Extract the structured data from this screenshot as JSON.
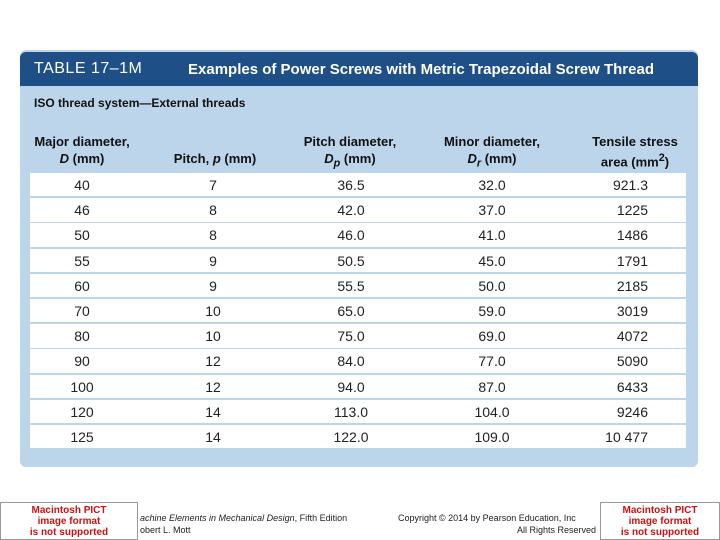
{
  "header": {
    "table_number": "TABLE 17–1M",
    "title": "Examples of Power Screws with Metric Trapezoidal Screw Thread"
  },
  "subtitle": "ISO thread system—External threads",
  "columns": [
    {
      "line1": "Major diameter,",
      "symbol": "D",
      "unit": "(mm)"
    },
    {
      "line1": "Pitch,",
      "symbol": "p",
      "unit": "(mm)"
    },
    {
      "line1": "Pitch diameter,",
      "symbol": "D",
      "subscript": "p",
      "unit": "(mm)"
    },
    {
      "line1": "Minor diameter,",
      "symbol": "D",
      "subscript": "r",
      "unit": "(mm)"
    },
    {
      "line1": "Tensile stress",
      "line2": "area (mm",
      "superscript": "2",
      "close": ")"
    }
  ],
  "table": {
    "rows": [
      [
        "40",
        "7",
        "36.5",
        "32.0",
        "921.3"
      ],
      [
        "46",
        "8",
        "42.0",
        "37.0",
        "1225"
      ],
      [
        "50",
        "8",
        "46.0",
        "41.0",
        "1486"
      ],
      [
        "55",
        "9",
        "50.5",
        "45.0",
        "1791"
      ],
      [
        "60",
        "9",
        "55.5",
        "50.0",
        "2185"
      ],
      [
        "70",
        "10",
        "65.0",
        "59.0",
        "3019"
      ],
      [
        "80",
        "10",
        "75.0",
        "69.0",
        "4072"
      ],
      [
        "90",
        "12",
        "84.0",
        "77.0",
        "5090"
      ],
      [
        "100",
        "12",
        "94.0",
        "87.0",
        "6433"
      ],
      [
        "120",
        "14",
        "113.0",
        "104.0",
        "9246"
      ],
      [
        "125",
        "14",
        "122.0",
        "109.0",
        "10 477"
      ]
    ]
  },
  "footer": {
    "book_line1": "achine Elements in Mechanical Design",
    "book_line1b": ", Fifth Edition",
    "book_line2": "obert L. Mott",
    "copyright_line1": "Copyright © 2014 by Pearson Education, Inc",
    "copyright_line2": "All Rights Reserved"
  },
  "placeholder": {
    "line1": "Macintosh PICT",
    "line2": "image format",
    "line3": "is not supported"
  }
}
